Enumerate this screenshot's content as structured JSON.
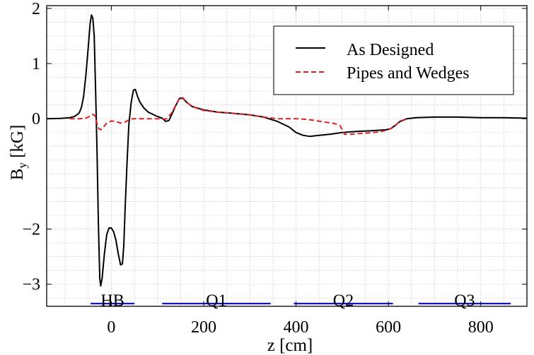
{
  "chart_data": {
    "type": "line",
    "title": "",
    "xlabel": "z [cm]",
    "ylabel_main": "B",
    "ylabel_sub": "y",
    "ylabel_unit": " [kG]",
    "xlim": [
      -140,
      900
    ],
    "ylim": [
      -3.4,
      2.05
    ],
    "xticks": [
      {
        "value": 0,
        "label": "0"
      },
      {
        "value": 200,
        "label": "200"
      },
      {
        "value": 400,
        "label": "400"
      },
      {
        "value": 600,
        "label": "600"
      },
      {
        "value": 800,
        "label": "800"
      }
    ],
    "yticks": [
      {
        "value": 2,
        "label": "2"
      },
      {
        "value": 1,
        "label": "1"
      },
      {
        "value": 0,
        "label": "0"
      },
      {
        "value": -2,
        "label": "−2"
      },
      {
        "value": -3,
        "label": "−3"
      }
    ],
    "xgrid_step": 50,
    "ygrid_step": 0.25,
    "grid": true,
    "legend_position": "top-right",
    "series": [
      {
        "name": "As Designed",
        "color": "#000000",
        "dash": "solid",
        "points": [
          [
            -140,
            0
          ],
          [
            -110,
            0.005
          ],
          [
            -90,
            0.02
          ],
          [
            -80,
            0.04
          ],
          [
            -70,
            0.1
          ],
          [
            -65,
            0.2
          ],
          [
            -60,
            0.4
          ],
          [
            -55,
            0.8
          ],
          [
            -50,
            1.3
          ],
          [
            -46,
            1.72
          ],
          [
            -43,
            1.88
          ],
          [
            -40,
            1.82
          ],
          [
            -37,
            1.5
          ],
          [
            -34,
            0.5
          ],
          [
            -31,
            -0.6
          ],
          [
            -28,
            -1.9
          ],
          [
            -25,
            -2.9
          ],
          [
            -23,
            -3.03
          ],
          [
            -20,
            -2.9
          ],
          [
            -15,
            -2.45
          ],
          [
            -10,
            -2.1
          ],
          [
            -5,
            -1.98
          ],
          [
            0,
            -1.98
          ],
          [
            5,
            -2.05
          ],
          [
            10,
            -2.2
          ],
          [
            15,
            -2.45
          ],
          [
            20,
            -2.65
          ],
          [
            24,
            -2.63
          ],
          [
            27,
            -2.3
          ],
          [
            30,
            -1.6
          ],
          [
            34,
            -0.8
          ],
          [
            38,
            -0.1
          ],
          [
            43,
            0.3
          ],
          [
            48,
            0.52
          ],
          [
            52,
            0.53
          ],
          [
            57,
            0.4
          ],
          [
            62,
            0.3
          ],
          [
            70,
            0.2
          ],
          [
            80,
            0.12
          ],
          [
            90,
            0.08
          ],
          [
            100,
            0.04
          ],
          [
            110,
            0.01
          ],
          [
            118,
            -0.05
          ],
          [
            125,
            -0.03
          ],
          [
            132,
            0.1
          ],
          [
            140,
            0.25
          ],
          [
            148,
            0.37
          ],
          [
            155,
            0.37
          ],
          [
            163,
            0.3
          ],
          [
            175,
            0.22
          ],
          [
            200,
            0.16
          ],
          [
            230,
            0.12
          ],
          [
            260,
            0.1
          ],
          [
            300,
            0.07
          ],
          [
            330,
            0.03
          ],
          [
            360,
            -0.05
          ],
          [
            385,
            -0.15
          ],
          [
            400,
            -0.25
          ],
          [
            415,
            -0.3
          ],
          [
            430,
            -0.32
          ],
          [
            450,
            -0.3
          ],
          [
            475,
            -0.28
          ],
          [
            500,
            -0.25
          ],
          [
            530,
            -0.23
          ],
          [
            560,
            -0.22
          ],
          [
            595,
            -0.2
          ],
          [
            605,
            -0.18
          ],
          [
            615,
            -0.12
          ],
          [
            625,
            -0.05
          ],
          [
            640,
            0
          ],
          [
            660,
            0.02
          ],
          [
            700,
            0.03
          ],
          [
            750,
            0.03
          ],
          [
            800,
            0.02
          ],
          [
            850,
            0.02
          ],
          [
            900,
            0.01
          ]
        ]
      },
      {
        "name": "Pipes and Wedges",
        "color": "#e02020",
        "dash": "dashed",
        "points": [
          [
            -90,
            0
          ],
          [
            -70,
            0
          ],
          [
            -55,
            0.01
          ],
          [
            -45,
            0.05
          ],
          [
            -40,
            0.08
          ],
          [
            -35,
            0.05
          ],
          [
            -32,
            -0.05
          ],
          [
            -30,
            -0.12
          ],
          [
            -27,
            -0.18
          ],
          [
            -23,
            -0.2
          ],
          [
            -18,
            -0.16
          ],
          [
            -10,
            -0.08
          ],
          [
            0,
            -0.04
          ],
          [
            10,
            -0.05
          ],
          [
            20,
            -0.08
          ],
          [
            30,
            -0.06
          ],
          [
            38,
            -0.02
          ],
          [
            45,
            0
          ],
          [
            60,
            0
          ],
          [
            80,
            0
          ],
          [
            100,
            0
          ],
          [
            110,
            -0.01
          ],
          [
            120,
            0
          ],
          [
            130,
            0.1
          ],
          [
            140,
            0.25
          ],
          [
            148,
            0.38
          ],
          [
            155,
            0.38
          ],
          [
            163,
            0.3
          ],
          [
            175,
            0.22
          ],
          [
            200,
            0.15
          ],
          [
            230,
            0.12
          ],
          [
            260,
            0.1
          ],
          [
            300,
            0.07
          ],
          [
            330,
            0.03
          ],
          [
            360,
            0
          ],
          [
            380,
            0
          ],
          [
            400,
            0
          ],
          [
            420,
            -0.01
          ],
          [
            440,
            -0.03
          ],
          [
            460,
            -0.06
          ],
          [
            480,
            -0.08
          ],
          [
            495,
            -0.12
          ],
          [
            505,
            -0.28
          ],
          [
            520,
            -0.28
          ],
          [
            550,
            -0.26
          ],
          [
            580,
            -0.24
          ],
          [
            600,
            -0.2
          ],
          [
            612,
            -0.15
          ],
          [
            622,
            -0.07
          ],
          [
            640,
            0
          ]
        ]
      }
    ],
    "magnets": [
      {
        "label": "HB",
        "start": -45,
        "end": 50
      },
      {
        "label": "Q1",
        "start": 110,
        "end": 345
      },
      {
        "label": "Q2",
        "start": 395,
        "end": 610
      },
      {
        "label": "Q3",
        "start": 665,
        "end": 865
      }
    ],
    "magnet_line_value": -3.35,
    "magnet_label_value": -3.2,
    "magnet_color": "#1010ee"
  }
}
